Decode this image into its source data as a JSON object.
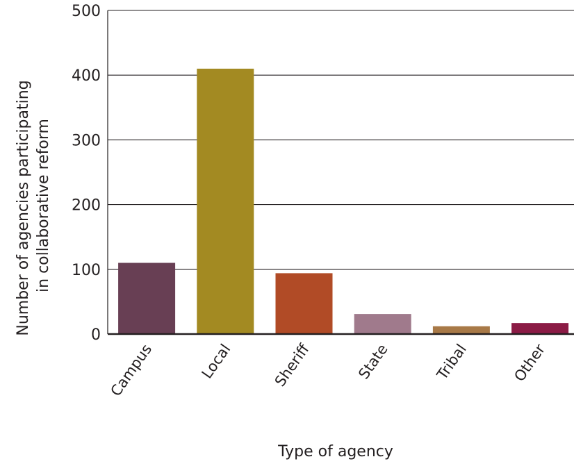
{
  "chart_data": {
    "type": "bar",
    "title": "",
    "xlabel": "Type of agency",
    "ylabel_lines": [
      "Number of agencies participating",
      "in collaborative reform"
    ],
    "categories": [
      "Campus",
      "Local",
      "Sheriff",
      "State",
      "Tribal",
      "Other"
    ],
    "values": [
      110,
      410,
      94,
      31,
      12,
      17
    ],
    "colors": [
      "#683f54",
      "#a38a22",
      "#b14b26",
      "#a07a8c",
      "#a87947",
      "#8b1b45"
    ],
    "ylim": [
      0,
      500
    ],
    "yticks": [
      0,
      100,
      200,
      300,
      400,
      500
    ],
    "grid": true,
    "legend": "none"
  }
}
